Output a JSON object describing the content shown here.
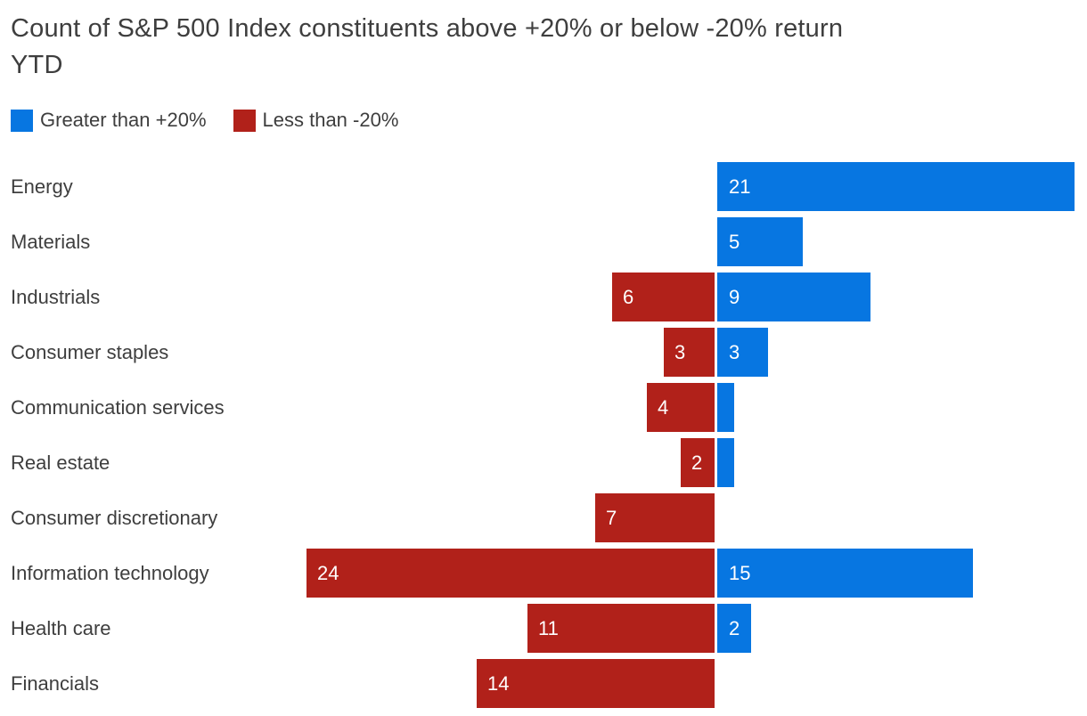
{
  "title": {
    "full": "Count of S&P 500 Index constituents above +20% or below -20% return YTD",
    "line1": "Count of S&P 500 Index constituents above +20% or below -20% return",
    "line2": "YTD"
  },
  "legend": [
    {
      "label": "Greater than +20%",
      "color": "#0776e1"
    },
    {
      "label": "Less than -20%",
      "color": "#b1211a"
    }
  ],
  "colors": {
    "positive": "#0776e1",
    "negative": "#b1211a",
    "text": "#3e3e3e",
    "value_label": "#ffffff",
    "background": "#ffffff"
  },
  "chart_data": {
    "type": "bar",
    "orientation": "horizontal-diverging",
    "title": "Count of S&P 500 Index constituents above +20% or below -20% return YTD",
    "xlabel": "",
    "ylabel": "",
    "axis_hidden": true,
    "grid": false,
    "legend_position": "top-left",
    "baseline_value": 0,
    "xlim": [
      -24,
      21
    ],
    "categories": [
      "Energy",
      "Materials",
      "Industrials",
      "Consumer staples",
      "Communication services",
      "Real estate",
      "Consumer discretionary",
      "Information technology",
      "Health care",
      "Financials"
    ],
    "series": [
      {
        "name": "Greater than +20%",
        "color": "#0776e1",
        "values": [
          21,
          5,
          9,
          3,
          1,
          1,
          0,
          15,
          2,
          0
        ]
      },
      {
        "name": "Less than -20%",
        "color": "#b1211a",
        "values": [
          0,
          0,
          6,
          3,
          4,
          2,
          7,
          24,
          11,
          14
        ]
      }
    ],
    "value_labels_shown_when": "value >= 2"
  }
}
